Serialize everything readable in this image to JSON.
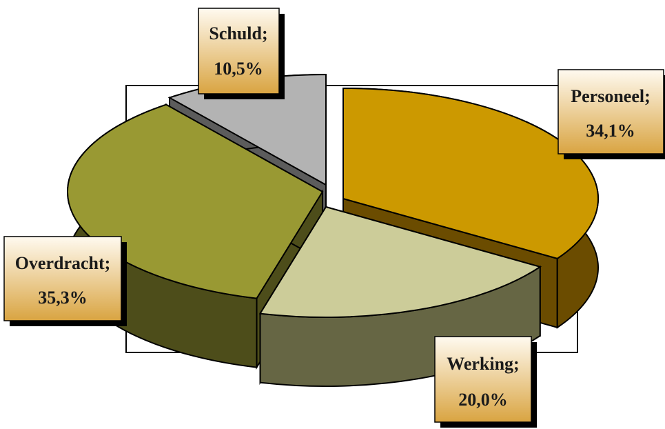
{
  "chart_data": {
    "type": "pie",
    "style": "3d-exploded",
    "categories": [
      "Personeel",
      "Werking",
      "Overdracht",
      "Schuld"
    ],
    "values": [
      34.1,
      20.0,
      35.3,
      10.5
    ],
    "labels": [
      {
        "line1": "Personeel;",
        "line2": "34,1%"
      },
      {
        "line1": "Werking;",
        "line2": "20,0%"
      },
      {
        "line1": "Overdracht;",
        "line2": "35,3%"
      },
      {
        "line1": "Schuld;",
        "line2": "10,5%"
      }
    ],
    "colors": {
      "Personeel": {
        "top": "#cc9900",
        "side": "#6b4c00"
      },
      "Werking": {
        "top": "#cccc99",
        "side": "#666644"
      },
      "Overdracht": {
        "top": "#999933",
        "side": "#4d4d1a"
      },
      "Schuld": {
        "top": "#b3b3b3",
        "side": "#5c5c5c"
      }
    },
    "label_box_gradient": [
      "#fffaf0",
      "#d9a441"
    ],
    "legend": "none"
  }
}
